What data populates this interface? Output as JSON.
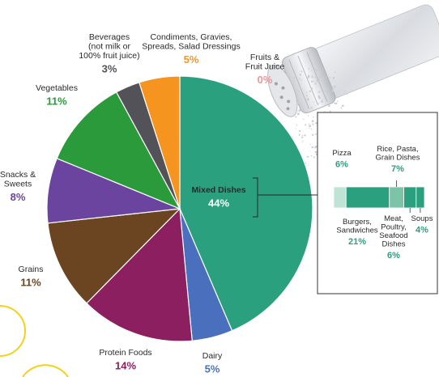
{
  "chart_data": {
    "type": "pie",
    "categories": [
      "Mixed Dishes",
      "Dairy",
      "Protein Foods",
      "Grains",
      "Snacks & Sweets",
      "Vegetables",
      "Beverages (not milk or 100% fruit juice)",
      "Condiments, Gravies, Spreads, Salad Dressings",
      "Fruits & Fruit Juice"
    ],
    "values": [
      44,
      5,
      14,
      11,
      8,
      11,
      3,
      5,
      0
    ],
    "labels": [
      {
        "lines": [
          "Mixed Dishes"
        ],
        "pct": "44%"
      },
      {
        "lines": [
          "Dairy"
        ],
        "pct": "5%"
      },
      {
        "lines": [
          "Protein Foods"
        ],
        "pct": "14%"
      },
      {
        "lines": [
          "Grains"
        ],
        "pct": "11%"
      },
      {
        "lines": [
          "Snacks &",
          "Sweets"
        ],
        "pct": "8%"
      },
      {
        "lines": [
          "Vegetables"
        ],
        "pct": "11%"
      },
      {
        "lines": [
          "Beverages",
          "(not milk or",
          "100% fruit juice)"
        ],
        "pct": "3%"
      },
      {
        "lines": [
          "Condiments, Gravies,",
          "Spreads, Salad Dressings"
        ],
        "pct": "5%"
      },
      {
        "lines": [
          "Fruits &",
          "Fruit Juice"
        ],
        "pct": "0%"
      }
    ],
    "colors": [
      "#2aa07e",
      "#4a6fbd",
      "#8b1f5f",
      "#6b4522",
      "#6b44a0",
      "#2a9a3a",
      "#525258",
      "#f5951f",
      "#e8989a"
    ],
    "breakdown": {
      "parent": "Mixed Dishes",
      "categories": [
        "Pizza",
        "Burgers, Sandwiches",
        "Rice, Pasta, Grain Dishes",
        "Meat, Poultry, Seafood Dishes",
        "Soups"
      ],
      "values": [
        6,
        21,
        7,
        6,
        4
      ],
      "labels": [
        {
          "lines": [
            "Pizza"
          ],
          "pct": "6%"
        },
        {
          "lines": [
            "Burgers,",
            "Sandwiches"
          ],
          "pct": "21%"
        },
        {
          "lines": [
            "Rice, Pasta,",
            "Grain Dishes"
          ],
          "pct": "7%"
        },
        {
          "lines": [
            "Meat,",
            "Poultry,",
            "Seafood",
            "Dishes"
          ],
          "pct": "6%"
        },
        {
          "lines": [
            "Soups"
          ],
          "pct": "4%"
        }
      ],
      "colors": [
        "#bfe3d5",
        "#2aa07e",
        "#7cc4a8",
        "#2aa07e",
        "#2aa07e"
      ]
    }
  }
}
